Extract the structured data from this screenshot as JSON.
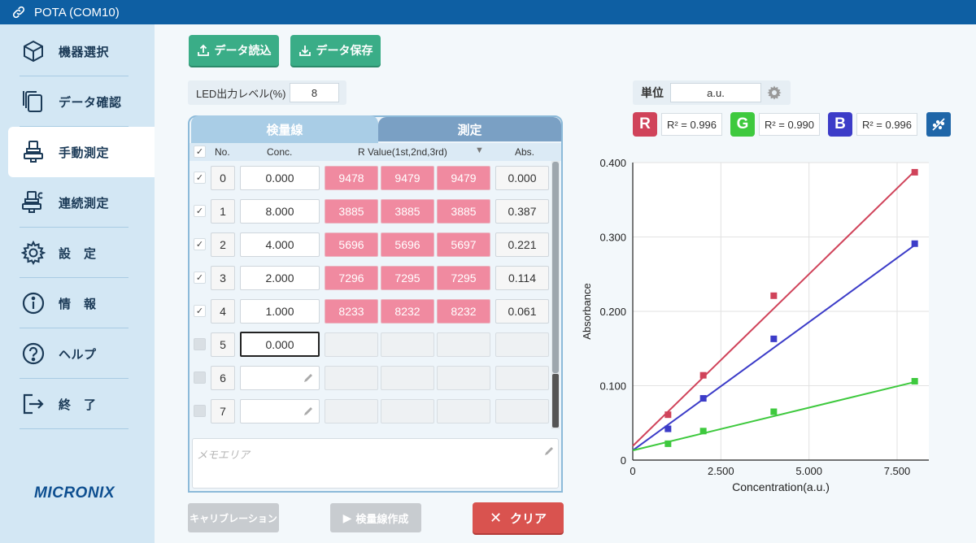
{
  "window": {
    "title": "POTA (COM10)"
  },
  "sidebar": {
    "items": [
      {
        "label": "機器選択",
        "icon": "cube-icon"
      },
      {
        "label": "データ確認",
        "icon": "documents-icon"
      },
      {
        "label": "手動測定",
        "icon": "measure-icon"
      },
      {
        "label": "連続測定",
        "icon": "continuous-measure-icon"
      },
      {
        "label": "設　定",
        "icon": "gear-icon"
      },
      {
        "label": "情　報",
        "icon": "info-icon"
      },
      {
        "label": "ヘルプ",
        "icon": "help-icon"
      },
      {
        "label": "終　了",
        "icon": "exit-icon"
      }
    ],
    "active_index": 2,
    "logo": "MICRONIX"
  },
  "toolbar": {
    "load_label": "データ読込",
    "save_label": "データ保存"
  },
  "led": {
    "label": "LED出力レベル(%)",
    "value": "8"
  },
  "tabs": {
    "calibration": "検量線",
    "measurement": "測定"
  },
  "table": {
    "headers": {
      "no": "No.",
      "conc": "Conc.",
      "rvalue": "R Value(1st,2nd,3rd)",
      "abs": "Abs."
    },
    "rows": [
      {
        "checked": true,
        "no": "0",
        "conc": "0.000",
        "r": [
          "9478",
          "9479",
          "9479"
        ],
        "abs": "0.000"
      },
      {
        "checked": true,
        "no": "1",
        "conc": "8.000",
        "r": [
          "3885",
          "3885",
          "3885"
        ],
        "abs": "0.387"
      },
      {
        "checked": true,
        "no": "2",
        "conc": "4.000",
        "r": [
          "5696",
          "5696",
          "5697"
        ],
        "abs": "0.221"
      },
      {
        "checked": true,
        "no": "3",
        "conc": "2.000",
        "r": [
          "7296",
          "7295",
          "7295"
        ],
        "abs": "0.114"
      },
      {
        "checked": true,
        "no": "4",
        "conc": "1.000",
        "r": [
          "8233",
          "8232",
          "8232"
        ],
        "abs": "0.061"
      },
      {
        "checked": false,
        "no": "5",
        "conc": "0.000",
        "r": [
          "",
          "",
          ""
        ],
        "abs": ""
      },
      {
        "checked": false,
        "no": "6",
        "conc": "",
        "r": [
          "",
          "",
          ""
        ],
        "abs": ""
      },
      {
        "checked": false,
        "no": "7",
        "conc": "",
        "r": [
          "",
          "",
          ""
        ],
        "abs": ""
      }
    ],
    "memo_placeholder": "メモエリア"
  },
  "bottom_buttons": {
    "calibration": "キャリブレーション",
    "create_curve": "検量線作成",
    "clear": "クリア"
  },
  "unit": {
    "label": "単位",
    "value": "a.u."
  },
  "channels": {
    "r": {
      "letter": "R",
      "r2": "R² = 0.996",
      "color": "#d0435a"
    },
    "g": {
      "letter": "G",
      "r2": "R² = 0.990",
      "color": "#3ec93e"
    },
    "b": {
      "letter": "B",
      "r2": "R² = 0.996",
      "color": "#3c3cc8"
    }
  },
  "chart_data": {
    "type": "scatter",
    "xlabel": "Concentration(a.u.)",
    "ylabel": "Absorbance",
    "xlim": [
      0,
      8.4
    ],
    "ylim": [
      0,
      0.4
    ],
    "xticks": [
      "0",
      "2.500",
      "5.000",
      "7.500"
    ],
    "yticks": [
      "0",
      "0.100",
      "0.200",
      "0.300",
      "0.400"
    ],
    "series": [
      {
        "color": "#d0435a",
        "x": [
          1,
          2,
          4,
          8
        ],
        "y": [
          0.061,
          0.114,
          0.221,
          0.387
        ],
        "fit": [
          0.019,
          0.0462
        ]
      },
      {
        "color": "#3c3cc8",
        "x": [
          1,
          2,
          4,
          8
        ],
        "y": [
          0.042,
          0.083,
          0.163,
          0.291
        ],
        "fit": [
          0.013,
          0.0345
        ]
      },
      {
        "color": "#3ec93e",
        "x": [
          1,
          2,
          4,
          8
        ],
        "y": [
          0.022,
          0.039,
          0.065,
          0.106
        ],
        "fit": [
          0.013,
          0.0115
        ]
      }
    ]
  }
}
